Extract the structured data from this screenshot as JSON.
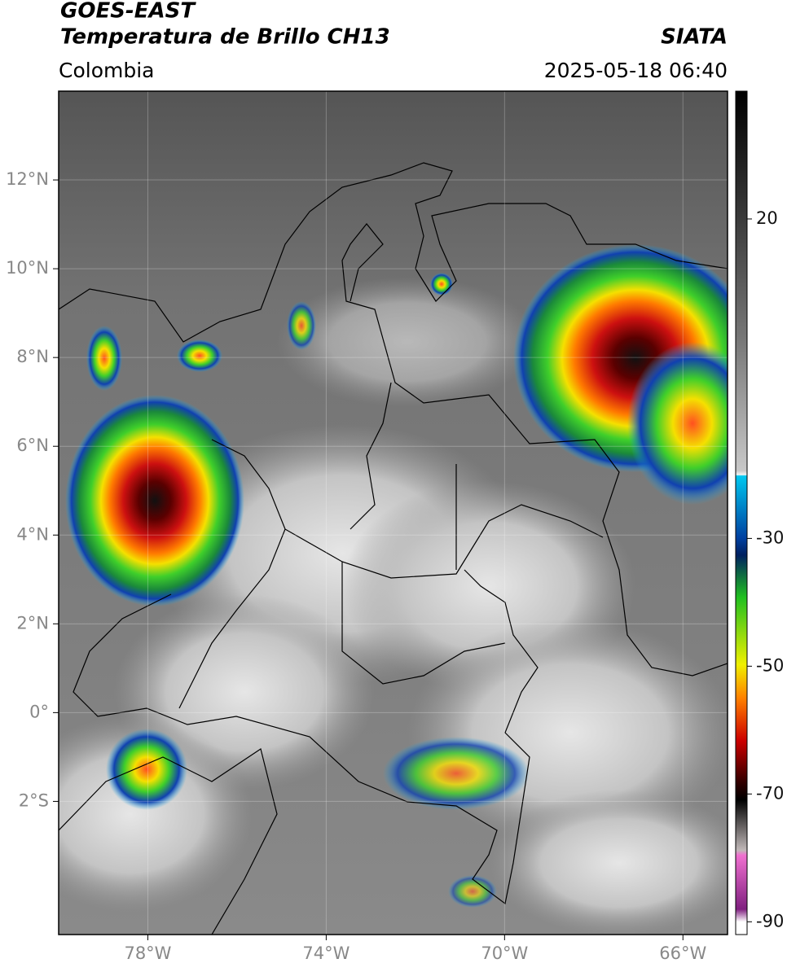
{
  "header": {
    "satellite": "GOES-EAST",
    "product": "Temperatura de Brillo CH13",
    "region": "Colombia",
    "source": "SIATA",
    "timestamp": "2025-05-18 06:40"
  },
  "map": {
    "xlim": [
      -80,
      -65
    ],
    "ylim": [
      -5,
      14
    ],
    "xticks": [
      {
        "value": -78,
        "label": "78°W"
      },
      {
        "value": -74,
        "label": "74°W"
      },
      {
        "value": -70,
        "label": "70°W"
      },
      {
        "value": -66,
        "label": "66°W"
      }
    ],
    "yticks": [
      {
        "value": 12,
        "label": "12°N"
      },
      {
        "value": 10,
        "label": "10°N"
      },
      {
        "value": 8,
        "label": "8°N"
      },
      {
        "value": 6,
        "label": "6°N"
      },
      {
        "value": 4,
        "label": "4°N"
      },
      {
        "value": 2,
        "label": "2°N"
      },
      {
        "value": 0,
        "label": "0°"
      },
      {
        "value": -2,
        "label": "2°S"
      }
    ],
    "grid": true
  },
  "colorbar": {
    "lim": [
      -92,
      40
    ],
    "ticks": [
      20,
      -30,
      -50,
      -70,
      -90
    ]
  }
}
